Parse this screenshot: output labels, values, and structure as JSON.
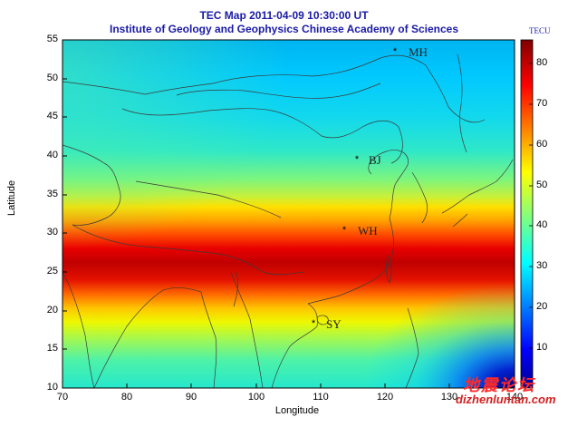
{
  "header": {
    "title_line1": "TEC Map 2011-04-09 10:30:00 UT",
    "title_line2": "Institute of Geology and Geophysics Chinese Academy of Sciences"
  },
  "axes": {
    "xlabel": "Longitude",
    "ylabel": "Latitude",
    "xlim": [
      70,
      140
    ],
    "ylim": [
      10,
      55
    ],
    "xticks": [
      "70",
      "80",
      "90",
      "100",
      "110",
      "120",
      "130",
      "140"
    ],
    "yticks": [
      "55",
      "50",
      "45",
      "40",
      "35",
      "30",
      "25",
      "20",
      "15",
      "10"
    ]
  },
  "colorbar": {
    "title": "TECU",
    "range": [
      0,
      86
    ],
    "ticks": [
      "80",
      "70",
      "60",
      "50",
      "40",
      "30",
      "20",
      "10"
    ],
    "colormap": "jet"
  },
  "stations": [
    {
      "code": "MH",
      "lon": 122.4,
      "lat": 53.5
    },
    {
      "code": "BJ",
      "lon": 116.2,
      "lat": 39.6
    },
    {
      "code": "WH",
      "lon": 114.3,
      "lat": 30.5
    },
    {
      "code": "SY",
      "lon": 109.5,
      "lat": 18.3
    }
  ],
  "tec_field": {
    "description_values": "equatorial anomaly crest near 24-26N with peak ~80+ TECU, decreasing northward to ~30 TECU near 50N",
    "crest_lat": 25.0,
    "crest_value": 83,
    "background_north": 30,
    "southeast_low": 3
  },
  "watermark": {
    "chinese": "地震论坛",
    "url": "dizhenluntan.com"
  }
}
